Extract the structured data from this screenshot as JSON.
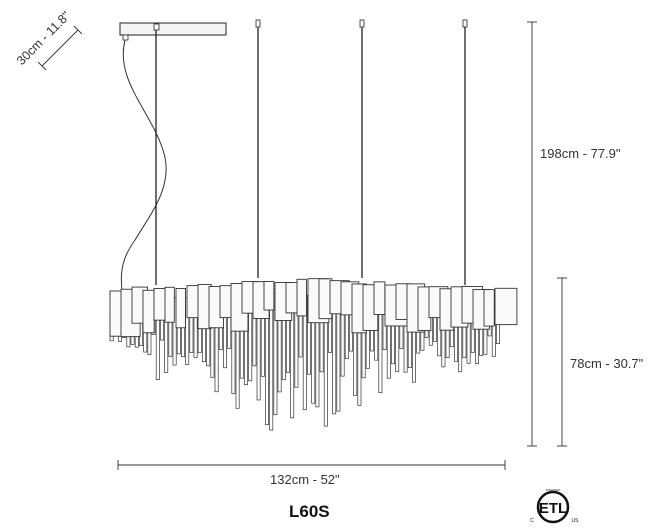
{
  "dimensions": {
    "canopy": "30cm - 11.8\"",
    "overall_height": "198cm - 77.9\"",
    "body_height": "78cm - 30.7\"",
    "width": "132cm - 52\""
  },
  "model": "L60S",
  "certification": {
    "mark": "ETL",
    "c": "C",
    "us": "US",
    "tiny_text": "INTERTEK"
  },
  "colors": {
    "line": "#222222",
    "metal": "#555555",
    "canopy_fill": "#f4f4f4"
  }
}
